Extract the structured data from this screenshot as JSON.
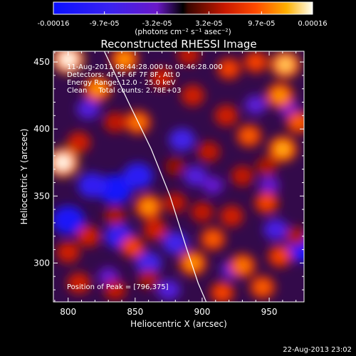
{
  "chart_data": {
    "type": "heatmap",
    "title": "Reconstructed RHESSI Image",
    "xlabel": "Heliocentric X (arcsec)",
    "ylabel": "Heliocentric Y (arcsec)",
    "xlim": [
      789,
      976
    ],
    "ylim": [
      271,
      458
    ],
    "xticks": [
      800,
      850,
      900,
      950
    ],
    "yticks": [
      300,
      350,
      400,
      450
    ],
    "colorbar": {
      "range": [
        -0.00016,
        0.00016
      ],
      "tick_labels": [
        "-0.00016",
        "-9.7e-05",
        "-3.2e-05",
        "3.2e-05",
        "9.7e-05",
        "0.00016"
      ],
      "tick_values": [
        -0.00016,
        -9.7e-05,
        -3.2e-05,
        3.2e-05,
        9.7e-05,
        0.00016
      ],
      "units_label": "(photons cm⁻² s⁻¹ asec⁻²)",
      "colormap": "blue-purple-red-yellow-white"
    },
    "annotations": [
      "11-Aug-2011 08:44:28.000 to 08:46:28.000",
      "Detectors: 4F 5F 6F 7F 8F, Att 0",
      "Energy Range: 12.0 - 25.0 keV",
      "Clean     Total counts: 2.78E+03"
    ],
    "peak_label": "Position of Peak = [796,375]",
    "peak": [
      796,
      375
    ],
    "limb_curve": [
      [
        827,
        458
      ],
      [
        845,
        420
      ],
      [
        862,
        385
      ],
      [
        876,
        350
      ],
      [
        888,
        312
      ],
      [
        897,
        285
      ],
      [
        903,
        271
      ]
    ],
    "hotspots": [
      {
        "x": 800,
        "y": 452,
        "value": 0.00016
      },
      {
        "x": 796,
        "y": 375,
        "value": 0.00016
      },
      {
        "x": 822,
        "y": 430,
        "value": 0.00012
      },
      {
        "x": 842,
        "y": 452,
        "value": 0.00012
      },
      {
        "x": 808,
        "y": 390,
        "value": 8e-05
      },
      {
        "x": 835,
        "y": 405,
        "value": 7e-05
      },
      {
        "x": 852,
        "y": 405,
        "value": 0.00011
      },
      {
        "x": 870,
        "y": 438,
        "value": 8e-05
      },
      {
        "x": 893,
        "y": 425,
        "value": 8e-05
      },
      {
        "x": 918,
        "y": 410,
        "value": 8e-05
      },
      {
        "x": 905,
        "y": 383,
        "value": 7e-05
      },
      {
        "x": 935,
        "y": 395,
        "value": 0.0001
      },
      {
        "x": 960,
        "y": 385,
        "value": 0.00013
      },
      {
        "x": 972,
        "y": 405,
        "value": 0.0001
      },
      {
        "x": 958,
        "y": 425,
        "value": 0.00012
      },
      {
        "x": 962,
        "y": 448,
        "value": 0.00014
      },
      {
        "x": 940,
        "y": 450,
        "value": 9e-05
      },
      {
        "x": 920,
        "y": 445,
        "value": 9e-05
      },
      {
        "x": 890,
        "y": 455,
        "value": 7e-05
      },
      {
        "x": 930,
        "y": 365,
        "value": 7e-05
      },
      {
        "x": 948,
        "y": 345,
        "value": 9e-05
      },
      {
        "x": 922,
        "y": 335,
        "value": 8e-05
      },
      {
        "x": 908,
        "y": 318,
        "value": 0.0001
      },
      {
        "x": 900,
        "y": 338,
        "value": 7e-05
      },
      {
        "x": 880,
        "y": 345,
        "value": 7e-05
      },
      {
        "x": 893,
        "y": 300,
        "value": 0.00012
      },
      {
        "x": 930,
        "y": 298,
        "value": 0.00011
      },
      {
        "x": 958,
        "y": 305,
        "value": 9e-05
      },
      {
        "x": 945,
        "y": 282,
        "value": 0.0001
      },
      {
        "x": 915,
        "y": 278,
        "value": 9e-05
      },
      {
        "x": 970,
        "y": 320,
        "value": 6e-05
      },
      {
        "x": 860,
        "y": 342,
        "value": 0.00012
      },
      {
        "x": 865,
        "y": 325,
        "value": 8e-05
      },
      {
        "x": 848,
        "y": 312,
        "value": 9e-05
      },
      {
        "x": 835,
        "y": 335,
        "value": 6e-05
      },
      {
        "x": 815,
        "y": 320,
        "value": 8e-05
      },
      {
        "x": 800,
        "y": 308,
        "value": 8e-05
      },
      {
        "x": 808,
        "y": 285,
        "value": 8e-05
      },
      {
        "x": 835,
        "y": 280,
        "value": 7e-05
      },
      {
        "x": 860,
        "y": 288,
        "value": 6e-05
      },
      {
        "x": 880,
        "y": 372,
        "value": 5e-05
      },
      {
        "x": 948,
        "y": 372,
        "value": 6e-05
      }
    ],
    "coldspots": [
      {
        "x": 835,
        "y": 355,
        "value": -0.00014
      },
      {
        "x": 818,
        "y": 358,
        "value": -0.0001
      },
      {
        "x": 800,
        "y": 332,
        "value": -0.00013
      },
      {
        "x": 852,
        "y": 365,
        "value": -0.00011
      },
      {
        "x": 838,
        "y": 320,
        "value": -0.0001
      },
      {
        "x": 860,
        "y": 300,
        "value": -8e-05
      },
      {
        "x": 880,
        "y": 315,
        "value": -8e-05
      },
      {
        "x": 885,
        "y": 392,
        "value": -8e-05
      },
      {
        "x": 895,
        "y": 365,
        "value": -6e-05
      },
      {
        "x": 975,
        "y": 312,
        "value": -0.00014
      },
      {
        "x": 955,
        "y": 325,
        "value": -7e-05
      },
      {
        "x": 940,
        "y": 418,
        "value": -5e-05
      },
      {
        "x": 965,
        "y": 415,
        "value": -4e-05
      },
      {
        "x": 922,
        "y": 295,
        "value": -5e-05
      },
      {
        "x": 815,
        "y": 415,
        "value": -6e-05
      },
      {
        "x": 950,
        "y": 358,
        "value": -4e-05
      },
      {
        "x": 908,
        "y": 358,
        "value": -4e-05
      },
      {
        "x": 830,
        "y": 290,
        "value": -4e-05
      },
      {
        "x": 875,
        "y": 280,
        "value": -6e-05
      }
    ]
  },
  "footer": {
    "timestamp": "22-Aug-2013 23:02"
  }
}
